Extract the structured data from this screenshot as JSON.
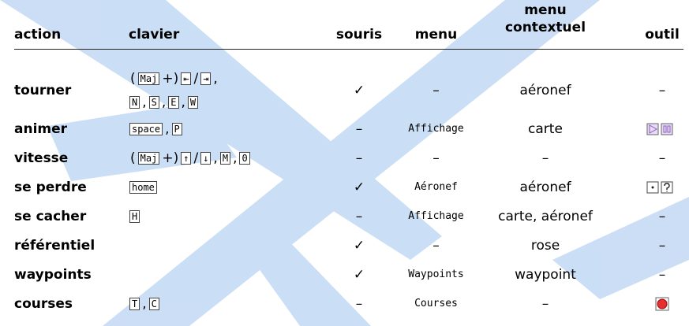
{
  "header": {
    "action": "action",
    "clavier": "clavier",
    "souris": "souris",
    "menu": "menu",
    "contextuel": "menu contextuel",
    "outil": "outil"
  },
  "rows": [
    {
      "action": "tourner",
      "clavier": [
        [
          {
            "text": "("
          },
          {
            "key": "Maj"
          },
          {
            "text": "+)"
          },
          {
            "key": "⇤"
          },
          {
            "text": "/"
          },
          {
            "key": "⇥"
          },
          {
            "text": ","
          }
        ],
        [
          {
            "key": "N"
          },
          {
            "text": ","
          },
          {
            "key": "S"
          },
          {
            "text": ","
          },
          {
            "key": "E"
          },
          {
            "text": ","
          },
          {
            "key": "W"
          }
        ]
      ],
      "souris": "✓",
      "menu": "–",
      "contextuel": "aéronef",
      "outil": "–"
    },
    {
      "action": "animer",
      "clavier": [
        [
          {
            "key": "space"
          },
          {
            "text": ","
          },
          {
            "key": "P"
          }
        ]
      ],
      "souris": "–",
      "menu": "Affichage",
      "contextuel": "carte"
    },
    {
      "action": "vitesse",
      "clavier": [
        [
          {
            "text": "("
          },
          {
            "key": "Maj"
          },
          {
            "text": "+)"
          },
          {
            "key": "↑"
          },
          {
            "text": "/"
          },
          {
            "key": "↓"
          },
          {
            "text": ","
          },
          {
            "key": "M"
          },
          {
            "text": ","
          },
          {
            "key": "0"
          }
        ]
      ],
      "souris": "–",
      "menu": "–",
      "contextuel": "–",
      "outil": "–"
    },
    {
      "action": "se perdre",
      "clavier": [
        [
          {
            "key": "home"
          }
        ]
      ],
      "souris": "✓",
      "menu": "Aéronef",
      "contextuel": "aéronef"
    },
    {
      "action": "se cacher",
      "clavier": [
        [
          {
            "key": "H"
          }
        ]
      ],
      "souris": "–",
      "menu": "Affichage",
      "contextuel": "carte, aéronef",
      "outil": "–"
    },
    {
      "action": "référentiel",
      "souris": "✓",
      "menu": "–",
      "contextuel": "rose",
      "outil": "–"
    },
    {
      "action": "waypoints",
      "souris": "✓",
      "menu": "Waypoints",
      "contextuel": "waypoint",
      "outil": "–"
    },
    {
      "action": "courses",
      "clavier": [
        [
          {
            "key": "T"
          },
          {
            "text": ","
          },
          {
            "key": "C"
          }
        ]
      ],
      "souris": "–",
      "menu": "Courses",
      "contextuel": "–"
    }
  ]
}
